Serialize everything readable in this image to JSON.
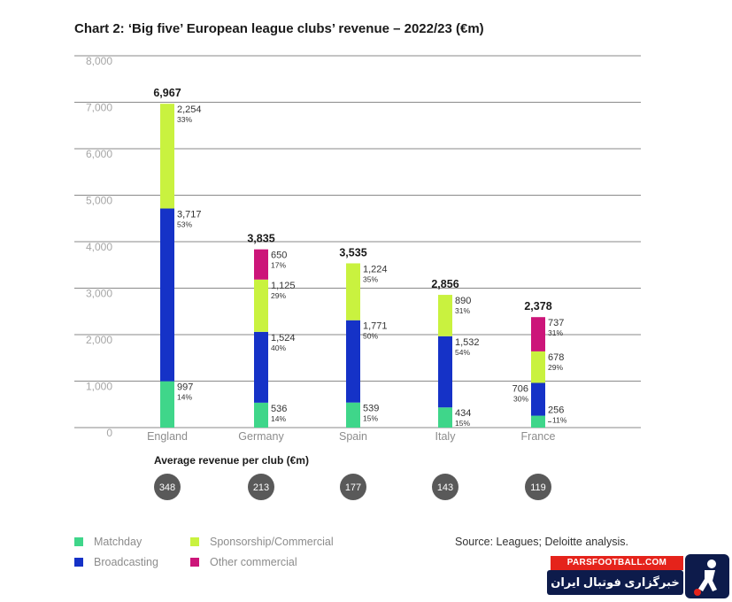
{
  "chart_data": {
    "type": "bar",
    "stacked": true,
    "title": "Chart 2: ‘Big five’ European league clubs’ revenue – 2022/23 (€m)",
    "categories": [
      "England",
      "Germany",
      "Spain",
      "Italy",
      "France"
    ],
    "ylim": [
      0,
      8000
    ],
    "yticks": [
      0,
      1000,
      2000,
      3000,
      4000,
      5000,
      6000,
      7000,
      8000
    ],
    "ytick_labels": [
      "0",
      "1,000",
      "2,000",
      "3,000",
      "4,000",
      "5,000",
      "6,000",
      "7,000",
      "8,000"
    ],
    "grid": true,
    "totals": [
      "6,967",
      "3,835",
      "3,535",
      "2,856",
      "2,378"
    ],
    "series": [
      {
        "name": "Matchday",
        "color": "#3fd68a",
        "values": [
          997,
          536,
          539,
          434,
          256
        ],
        "labels": [
          "997",
          "536",
          "539",
          "434",
          "256"
        ],
        "pcts": [
          "14%",
          "14%",
          "15%",
          "15%",
          "11%"
        ]
      },
      {
        "name": "Broadcasting",
        "color": "#1532c7",
        "values": [
          3717,
          1524,
          1771,
          1532,
          706
        ],
        "labels": [
          "3,717",
          "1,524",
          "1,771",
          "1,532",
          "706"
        ],
        "pcts": [
          "53%",
          "40%",
          "50%",
          "54%",
          "30%"
        ]
      },
      {
        "name": "Sponsorship/Commercial",
        "color": "#c9f23f",
        "values": [
          2254,
          1125,
          1224,
          890,
          678
        ],
        "labels": [
          "2,254",
          "1,125",
          "1,224",
          "890",
          "678"
        ],
        "pcts": [
          "33%",
          "29%",
          "35%",
          "31%",
          "29%"
        ]
      },
      {
        "name": "Other commercial",
        "color": "#cc1579",
        "values": [
          0,
          650,
          0,
          0,
          737
        ],
        "labels": [
          "",
          "650",
          "",
          "",
          "737"
        ],
        "pcts": [
          "",
          "17%",
          "",
          "",
          "31%"
        ]
      }
    ],
    "average_revenue_title": "Average revenue per club (€m)",
    "average_revenue": [
      "348",
      "213",
      "177",
      "143",
      "119"
    ],
    "legend_position": "bottom-left",
    "source": "Source: Leagues; Deloitte analysis."
  },
  "legend": {
    "matchday": "Matchday",
    "sponsorship": "Sponsorship/Commercial",
    "broadcasting": "Broadcasting",
    "other": "Other commercial"
  },
  "branding": {
    "site": "PARSFOOTBALL.COM",
    "tagline": "خبرگزاری فوتبال ایران"
  },
  "colors": {
    "matchday": "#3fd68a",
    "broadcasting": "#1532c7",
    "sponsorship": "#c9f23f",
    "other": "#cc1579",
    "avg_circle": "#595959"
  }
}
